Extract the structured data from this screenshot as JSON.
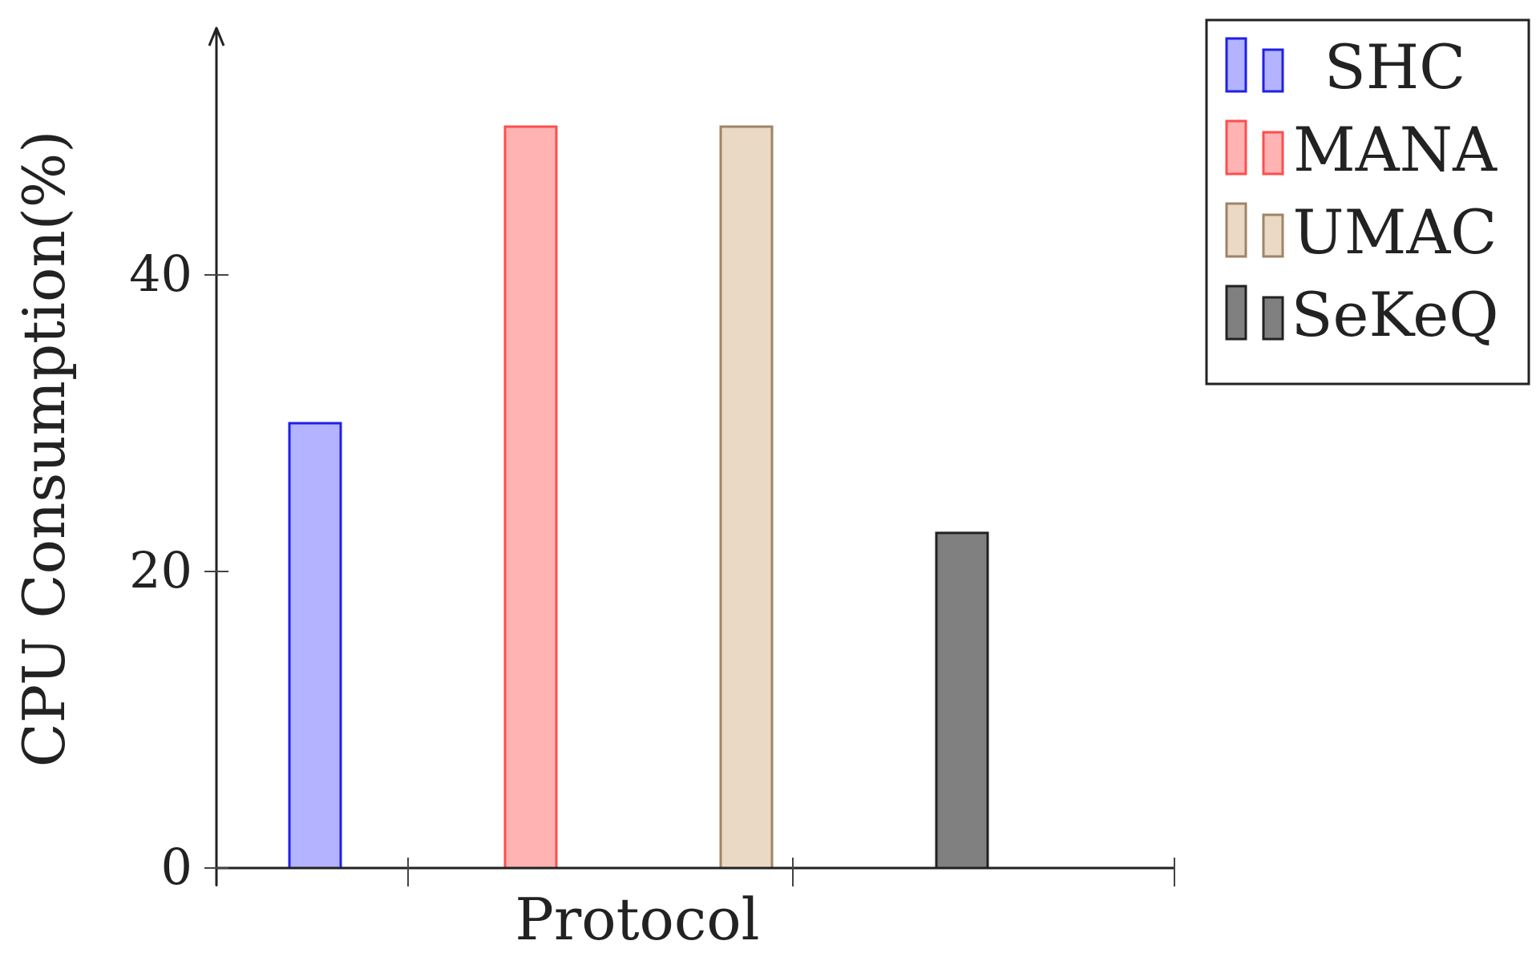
{
  "chart_data": {
    "type": "bar",
    "xlabel": "Protocol",
    "ylabel": "CPU Consumption(%)",
    "ylim": [
      0,
      55
    ],
    "yticks": [
      0,
      20,
      40
    ],
    "series": [
      {
        "name": "SHC",
        "value": 30,
        "fill": "#b3b3ff",
        "stroke": "#1f1fe8"
      },
      {
        "name": "MANA",
        "value": 50,
        "fill": "#ffb3b3",
        "stroke": "#ff4d4d"
      },
      {
        "name": "UMAC",
        "value": 50,
        "fill": "#ead9c4",
        "stroke": "#9e8468"
      },
      {
        "name": "SeKeQ",
        "value": 22.6,
        "fill": "#808080",
        "stroke": "#222222"
      }
    ],
    "legend_position": "outside-top-right",
    "grid": false
  }
}
